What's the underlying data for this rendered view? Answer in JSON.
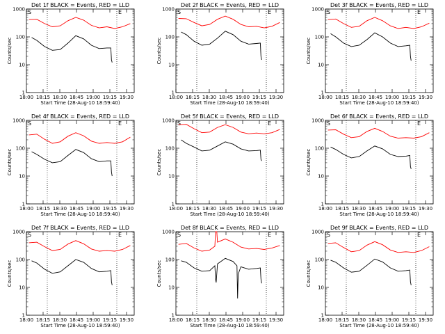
{
  "chart_data": [
    {
      "type": "line",
      "title": "Det 1f BLACK = Events, RED = LLD",
      "xlabel": "Start Time (28-Aug-10 18:59:40)",
      "ylabel": "Counts/sec",
      "yscale": "log",
      "ylim": [
        1,
        1000
      ],
      "y_ticks": [
        "1",
        "10",
        "100",
        "1000"
      ],
      "x_ticks": [
        "18:00",
        "18:15",
        "18:30",
        "18:45",
        "19:00",
        "19:15",
        "19:30"
      ],
      "markers": [
        "S",
        "E"
      ],
      "series": [
        {
          "color": "#ff0000",
          "x": [
            0.2,
            0.8,
            1.4,
            2.0,
            2.6,
            3.2,
            3.8,
            4.4,
            5.0,
            5.6,
            6.2,
            6.8,
            7.4,
            8.0
          ],
          "y": [
            420,
            430,
            300,
            230,
            250,
            380,
            500,
            400,
            260,
            210,
            230,
            200,
            230,
            300
          ]
        },
        {
          "color": "#000000",
          "x": [
            0.4,
            0.8,
            1.4,
            2.0,
            2.6,
            3.2,
            3.8,
            4.4,
            5.0,
            5.6,
            6.2,
            6.5,
            6.55,
            6.6
          ],
          "y": [
            95,
            75,
            45,
            33,
            35,
            60,
            110,
            85,
            50,
            38,
            40,
            40,
            15,
            12
          ]
        }
      ]
    },
    {
      "type": "line",
      "title": "Det 2f BLACK = Events, RED = LLD",
      "xlabel": "Start Time (28-Aug-10 18:59:40)",
      "ylabel": "Counts/sec",
      "yscale": "log",
      "ylim": [
        1,
        1000
      ],
      "y_ticks": [
        "1",
        "10",
        "100",
        "1000"
      ],
      "x_ticks": [
        "18:00",
        "18:15",
        "18:30",
        "18:45",
        "19:00",
        "19:15",
        "19:30"
      ],
      "markers": [
        "S",
        "E"
      ],
      "series": [
        {
          "color": "#ff0000",
          "x": [
            0.2,
            0.8,
            1.4,
            2.0,
            2.6,
            3.2,
            3.8,
            4.4,
            5.0,
            5.6,
            6.2,
            6.8,
            7.4,
            8.0
          ],
          "y": [
            460,
            450,
            330,
            250,
            280,
            430,
            560,
            430,
            280,
            230,
            240,
            210,
            240,
            330
          ]
        },
        {
          "color": "#000000",
          "x": [
            0.4,
            0.8,
            1.4,
            2.0,
            2.6,
            3.2,
            3.8,
            4.4,
            5.0,
            5.6,
            6.2,
            6.5,
            6.55,
            6.6
          ],
          "y": [
            150,
            120,
            70,
            50,
            55,
            90,
            160,
            120,
            70,
            55,
            58,
            60,
            20,
            15
          ]
        }
      ]
    },
    {
      "type": "line",
      "title": "Det 3f BLACK = Events, RED = LLD",
      "xlabel": "Start Time (28-Aug-10 18:59:40)",
      "ylabel": "Counts/sec",
      "yscale": "log",
      "ylim": [
        1,
        1000
      ],
      "y_ticks": [
        "1",
        "10",
        "100",
        "1000"
      ],
      "x_ticks": [
        "18:00",
        "18:15",
        "18:30",
        "18:45",
        "19:00",
        "19:15",
        "19:30"
      ],
      "markers": [
        "S",
        "E"
      ],
      "series": [
        {
          "color": "#ff0000",
          "x": [
            0.2,
            0.8,
            1.4,
            2.0,
            2.6,
            3.2,
            3.8,
            4.4,
            5.0,
            5.6,
            6.2,
            6.8,
            7.4,
            8.0
          ],
          "y": [
            420,
            440,
            300,
            220,
            240,
            380,
            500,
            380,
            250,
            200,
            220,
            200,
            230,
            310
          ]
        },
        {
          "color": "#000000",
          "x": [
            0.4,
            0.8,
            1.4,
            2.0,
            2.6,
            3.2,
            3.8,
            4.4,
            5.0,
            5.6,
            6.2,
            6.5,
            6.55,
            6.6
          ],
          "y": [
            130,
            100,
            60,
            45,
            50,
            80,
            140,
            100,
            60,
            45,
            48,
            50,
            20,
            14
          ]
        }
      ]
    },
    {
      "type": "line",
      "title": "Det 4f BLACK = Events, RED = LLD",
      "xlabel": "Start Time (28-Aug-10 18:59:40)",
      "ylabel": "Counts/sec",
      "yscale": "log",
      "ylim": [
        1,
        1000
      ],
      "y_ticks": [
        "1",
        "10",
        "100",
        "1000"
      ],
      "x_ticks": [
        "18:00",
        "18:15",
        "18:30",
        "18:45",
        "19:00",
        "19:15",
        "19:30"
      ],
      "markers": [
        "S",
        "E"
      ],
      "series": [
        {
          "color": "#ff0000",
          "x": [
            0.2,
            0.8,
            1.4,
            2.0,
            2.6,
            3.2,
            3.8,
            4.4,
            5.0,
            5.6,
            6.2,
            6.8,
            7.4,
            8.0
          ],
          "y": [
            300,
            320,
            210,
            150,
            170,
            270,
            360,
            280,
            180,
            150,
            160,
            150,
            170,
            250
          ]
        },
        {
          "color": "#000000",
          "x": [
            0.4,
            0.8,
            1.4,
            2.0,
            2.6,
            3.2,
            3.8,
            4.4,
            5.0,
            5.6,
            6.2,
            6.5,
            6.55,
            6.6
          ],
          "y": [
            75,
            60,
            40,
            30,
            33,
            55,
            90,
            70,
            42,
            33,
            35,
            35,
            14,
            10
          ]
        }
      ]
    },
    {
      "type": "line",
      "title": "Det 5f BLACK = Events, RED = LLD",
      "xlabel": "Start Time (28-Aug-10 18:59:40)",
      "ylabel": "Counts/sec",
      "yscale": "log",
      "ylim": [
        1,
        1000
      ],
      "y_ticks": [
        "1",
        "10",
        "100",
        "1000"
      ],
      "x_ticks": [
        "18:00",
        "18:15",
        "18:30",
        "18:45",
        "19:00",
        "19:15",
        "19:30"
      ],
      "markers": [
        "S",
        "E"
      ],
      "series": [
        {
          "color": "#ff0000",
          "x": [
            0.2,
            0.8,
            1.4,
            2.0,
            2.6,
            3.2,
            3.8,
            4.4,
            5.0,
            5.6,
            6.2,
            6.8,
            7.4,
            8.0
          ],
          "y": [
            700,
            720,
            500,
            360,
            380,
            560,
            700,
            560,
            380,
            330,
            350,
            330,
            360,
            470
          ]
        },
        {
          "color": "#000000",
          "x": [
            0.4,
            0.8,
            1.4,
            2.0,
            2.6,
            3.2,
            3.8,
            4.4,
            5.0,
            5.6,
            6.2,
            6.5,
            6.55,
            6.6
          ],
          "y": [
            200,
            150,
            110,
            80,
            85,
            120,
            170,
            140,
            95,
            80,
            82,
            85,
            40,
            35
          ]
        }
      ]
    },
    {
      "type": "line",
      "title": "Det 6f BLACK = Events, RED = LLD",
      "xlabel": "Start Time (28-Aug-10 18:59:40)",
      "ylabel": "Counts/sec",
      "yscale": "log",
      "ylim": [
        1,
        1000
      ],
      "y_ticks": [
        "1",
        "10",
        "100",
        "1000"
      ],
      "x_ticks": [
        "18:00",
        "18:15",
        "18:30",
        "18:45",
        "19:00",
        "19:15",
        "19:30"
      ],
      "markers": [
        "S",
        "E"
      ],
      "series": [
        {
          "color": "#ff0000",
          "x": [
            0.2,
            0.8,
            1.4,
            2.0,
            2.6,
            3.2,
            3.8,
            4.4,
            5.0,
            5.6,
            6.2,
            6.8,
            7.4,
            8.0
          ],
          "y": [
            450,
            460,
            320,
            240,
            260,
            400,
            520,
            400,
            270,
            230,
            240,
            230,
            260,
            360
          ]
        },
        {
          "color": "#000000",
          "x": [
            0.4,
            0.8,
            1.4,
            2.0,
            2.6,
            3.2,
            3.8,
            4.4,
            5.0,
            5.6,
            6.2,
            6.5,
            6.55,
            6.6
          ],
          "y": [
            110,
            90,
            60,
            45,
            50,
            80,
            120,
            95,
            60,
            50,
            52,
            55,
            22,
            18
          ]
        }
      ]
    },
    {
      "type": "line",
      "title": "Det 7f BLACK = Events, RED = LLD",
      "xlabel": "Start Time (28-Aug-10 18:59:40)",
      "ylabel": "Counts/sec",
      "yscale": "log",
      "ylim": [
        1,
        1000
      ],
      "y_ticks": [
        "1",
        "10",
        "100",
        "1000"
      ],
      "x_ticks": [
        "18:00",
        "18:15",
        "18:30",
        "18:45",
        "19:00",
        "19:15",
        "19:30"
      ],
      "markers": [
        "S",
        "E"
      ],
      "series": [
        {
          "color": "#ff0000",
          "x": [
            0.2,
            0.8,
            1.4,
            2.0,
            2.6,
            3.2,
            3.8,
            4.4,
            5.0,
            5.6,
            6.2,
            6.8,
            7.4,
            8.0
          ],
          "y": [
            400,
            420,
            290,
            210,
            230,
            360,
            480,
            370,
            240,
            200,
            210,
            200,
            230,
            320
          ]
        },
        {
          "color": "#000000",
          "x": [
            0.4,
            0.8,
            1.4,
            2.0,
            2.6,
            3.2,
            3.8,
            4.4,
            5.0,
            5.6,
            6.2,
            6.5,
            6.55,
            6.6
          ],
          "y": [
            90,
            75,
            45,
            32,
            36,
            60,
            100,
            80,
            48,
            36,
            38,
            40,
            16,
            12
          ]
        }
      ]
    },
    {
      "type": "line",
      "title": "Det 8f BLACK = Events, RED = LLD",
      "xlabel": "Start Time (28-Aug-10 18:59:40)",
      "ylabel": "Counts/sec",
      "yscale": "log",
      "ylim": [
        1,
        1000
      ],
      "y_ticks": [
        "1",
        "10",
        "100",
        "1000"
      ],
      "x_ticks": [
        "18:00",
        "18:15",
        "18:30",
        "18:45",
        "19:00",
        "19:15",
        "19:30"
      ],
      "markers": [
        "S",
        "E"
      ],
      "series": [
        {
          "color": "#ff0000",
          "x": [
            0.2,
            0.8,
            1.4,
            2.0,
            2.6,
            3.0,
            3.05,
            3.1,
            3.15,
            3.2,
            3.8,
            4.4,
            5.0,
            5.6,
            6.2,
            6.8,
            7.4,
            8.0
          ],
          "y": [
            350,
            380,
            260,
            200,
            220,
            300,
            1000,
            1000,
            1000,
            420,
            550,
            420,
            280,
            240,
            250,
            230,
            260,
            320
          ]
        },
        {
          "color": "#000000",
          "x": [
            0.4,
            0.8,
            1.4,
            2.0,
            2.6,
            3.0,
            3.05,
            3.1,
            3.2,
            3.8,
            4.4,
            4.7,
            4.75,
            4.8,
            5.0,
            5.6,
            6.2,
            6.5,
            6.55,
            6.6
          ],
          "y": [
            90,
            80,
            50,
            38,
            40,
            60,
            20,
            15,
            70,
            110,
            85,
            60,
            4,
            30,
            55,
            45,
            48,
            50,
            20,
            14
          ]
        }
      ]
    },
    {
      "type": "line",
      "title": "Det 9f BLACK = Events, RED = LLD",
      "xlabel": "Start Time (28-Aug-10 18:59:40)",
      "ylabel": "Counts/sec",
      "yscale": "log",
      "ylim": [
        1,
        1000
      ],
      "y_ticks": [
        "1",
        "10",
        "100",
        "1000"
      ],
      "x_ticks": [
        "18:00",
        "18:15",
        "18:30",
        "18:45",
        "19:00",
        "19:15",
        "19:30"
      ],
      "markers": [
        "S",
        "E"
      ],
      "series": [
        {
          "color": "#ff0000",
          "x": [
            0.2,
            0.8,
            1.4,
            2.0,
            2.6,
            3.2,
            3.8,
            4.4,
            5.0,
            5.6,
            6.2,
            6.8,
            7.4,
            8.0
          ],
          "y": [
            380,
            400,
            270,
            190,
            210,
            330,
            440,
            340,
            220,
            180,
            190,
            180,
            210,
            290
          ]
        },
        {
          "color": "#000000",
          "x": [
            0.4,
            0.8,
            1.4,
            2.0,
            2.6,
            3.2,
            3.8,
            4.4,
            5.0,
            5.6,
            6.2,
            6.5,
            6.55,
            6.6
          ],
          "y": [
            95,
            80,
            50,
            35,
            38,
            62,
            105,
            82,
            50,
            38,
            40,
            42,
            16,
            12
          ]
        }
      ]
    }
  ]
}
